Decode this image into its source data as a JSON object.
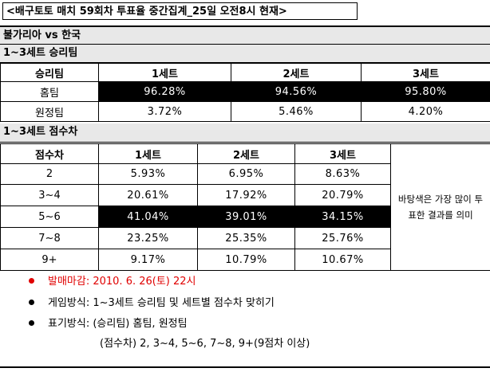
{
  "title": "<배구토토 매치 59회차 투표율 중간집계_25일 오전8시 현재>",
  "match": "불가리아 vs 한국",
  "winner_section": {
    "heading": "1~3세트 승리팀",
    "columns": [
      "승리팀",
      "1세트",
      "2세트",
      "3세트"
    ],
    "rows": [
      {
        "label": "홈팀",
        "values": [
          "96.28%",
          "94.56%",
          "95.80%"
        ],
        "highlight": true
      },
      {
        "label": "원정팀",
        "values": [
          "3.72%",
          "5.46%",
          "4.20%"
        ],
        "highlight": false
      }
    ]
  },
  "diff_section": {
    "heading": "1~3세트 점수차",
    "columns": [
      "점수차",
      "1세트",
      "2세트",
      "3세트"
    ],
    "rows": [
      {
        "label": "2",
        "values": [
          "5.93%",
          "6.95%",
          "8.63%"
        ],
        "highlight": false
      },
      {
        "label": "3~4",
        "values": [
          "20.61%",
          "17.92%",
          "20.79%"
        ],
        "highlight": false
      },
      {
        "label": "5~6",
        "values": [
          "41.04%",
          "39.01%",
          "34.15%"
        ],
        "highlight": true
      },
      {
        "label": "7~8",
        "values": [
          "23.25%",
          "25.35%",
          "25.76%"
        ],
        "highlight": false
      },
      {
        "label": "9+",
        "values": [
          "9.17%",
          "10.79%",
          "10.67%"
        ],
        "highlight": false
      }
    ],
    "side_note": "바탕색은 가장 많이 투표한 결과를 의미"
  },
  "notes": {
    "deadline": "발매마감: 2010. 6. 26(토) 22시",
    "method": "게임방식: 1~3세트 승리팀 및 세트별 점수차 맞히기",
    "notation": "표기방식: (승리팀) 홈팀, 원정팀",
    "notation2": "(점수차) 2, 3~4, 5~6, 7~8, 9+(9점차 이상)"
  },
  "colors": {
    "highlight": "#000000",
    "band": "#e8e8e8",
    "deadline": "#e00000"
  }
}
